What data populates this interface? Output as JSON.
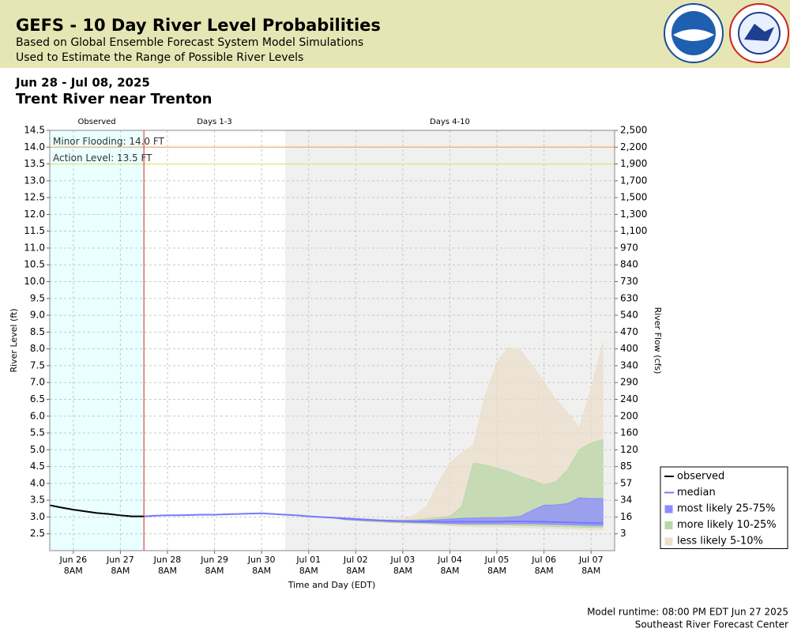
{
  "header": {
    "title": "GEFS - 10 Day River Level Probabilities",
    "subtitle1": "Based on Global Ensemble Forecast System Model Simulations",
    "subtitle2": "Used to Estimate the Range of Possible River Levels"
  },
  "footer": {
    "runtime": "Model runtime: 08:00 PM EDT Jun 27 2025",
    "center": "Southeast River Forecast Center"
  },
  "chart_data": {
    "type": "band",
    "date_range": "Jun 28 - Jul 08, 2025",
    "title": "Trent River near Trenton",
    "xlabel": "Time and Day (EDT)",
    "ylabel": "River Level (ft)",
    "y2label": "River Flow (cfs)",
    "grid": true,
    "legend": "right",
    "xlim": [
      "2025-06-25T20:00",
      "2025-07-07T20:00"
    ],
    "ylim": [
      2.0,
      14.5
    ],
    "xticks": [
      {
        "value": "2025-06-26T08:00",
        "label": "Jun 26",
        "time": "8AM"
      },
      {
        "value": "2025-06-27T08:00",
        "label": "Jun 27",
        "time": "8AM"
      },
      {
        "value": "2025-06-28T08:00",
        "label": "Jun 28",
        "time": "8AM"
      },
      {
        "value": "2025-06-29T08:00",
        "label": "Jun 29",
        "time": "8AM"
      },
      {
        "value": "2025-06-30T08:00",
        "label": "Jun 30",
        "time": "8AM"
      },
      {
        "value": "2025-07-01T08:00",
        "label": "Jul 01",
        "time": "8AM"
      },
      {
        "value": "2025-07-02T08:00",
        "label": "Jul 02",
        "time": "8AM"
      },
      {
        "value": "2025-07-03T08:00",
        "label": "Jul 03",
        "time": "8AM"
      },
      {
        "value": "2025-07-04T08:00",
        "label": "Jul 04",
        "time": "8AM"
      },
      {
        "value": "2025-07-05T08:00",
        "label": "Jul 05",
        "time": "8AM"
      },
      {
        "value": "2025-07-06T08:00",
        "label": "Jul 06",
        "time": "8AM"
      },
      {
        "value": "2025-07-07T08:00",
        "label": "Jul 07",
        "time": "8AM"
      }
    ],
    "yticks": [
      2.5,
      {
        "value": 3,
        "label": "3.0"
      },
      3.5,
      {
        "value": 4,
        "label": "4.0"
      },
      4.5,
      {
        "value": 5,
        "label": "5.0"
      },
      5.5,
      {
        "value": 6,
        "label": "6.0"
      },
      6.5,
      {
        "value": 7,
        "label": "7.0"
      },
      7.5,
      {
        "value": 8,
        "label": "8.0"
      },
      8.5,
      {
        "value": 9,
        "label": "9.0"
      },
      9.5,
      {
        "value": 10,
        "label": "10.0"
      },
      10.5,
      {
        "value": 11,
        "label": "11.0"
      },
      11.5,
      {
        "value": 12,
        "label": "12.0"
      },
      12.5,
      {
        "value": 13,
        "label": "13.0"
      },
      13.5,
      {
        "value": 14,
        "label": "14.0"
      },
      14.5
    ],
    "y2ticks": [
      3,
      16,
      34,
      57,
      85,
      120,
      160,
      200,
      240,
      290,
      340,
      400,
      470,
      540,
      630,
      730,
      840,
      970,
      {
        "value": 1100,
        "label": "1,100"
      },
      {
        "value": 1300,
        "label": "1,300"
      },
      {
        "value": 1500,
        "label": "1,500"
      },
      {
        "value": 1700,
        "label": "1,700"
      },
      {
        "value": 1900,
        "label": "1,900"
      },
      {
        "value": 2200,
        "label": "2,200"
      },
      {
        "value": 2500,
        "label": "2,500"
      }
    ],
    "regions": [
      {
        "label": "Observed",
        "start": "2025-06-25T20:00",
        "end": "2025-06-27T20:00",
        "color": "#eaffff"
      },
      {
        "label": "Days 1-3",
        "start": "2025-06-27T20:00",
        "end": "2025-06-30T20:00",
        "color": "#ffffff"
      },
      {
        "label": "Days 4-10",
        "start": "2025-06-30T20:00",
        "end": "2025-07-07T20:00",
        "color": "#f0f0f0"
      }
    ],
    "thresholds": [
      {
        "label": "Minor Flooding: 14.0 FT",
        "value": 14.0,
        "color": "#f0b070"
      },
      {
        "label": "Action Level: 13.5 FT",
        "value": 13.5,
        "color": "#e0e070"
      }
    ],
    "x": [
      "2025-06-27T20:00",
      "2025-06-28T02:00",
      "2025-06-28T08:00",
      "2025-06-28T14:00",
      "2025-06-28T20:00",
      "2025-06-29T02:00",
      "2025-06-29T08:00",
      "2025-06-29T14:00",
      "2025-06-29T20:00",
      "2025-06-30T02:00",
      "2025-06-30T08:00",
      "2025-06-30T14:00",
      "2025-06-30T20:00",
      "2025-07-01T02:00",
      "2025-07-01T08:00",
      "2025-07-01T14:00",
      "2025-07-01T20:00",
      "2025-07-02T02:00",
      "2025-07-02T08:00",
      "2025-07-02T14:00",
      "2025-07-02T20:00",
      "2025-07-03T02:00",
      "2025-07-03T08:00",
      "2025-07-03T14:00",
      "2025-07-03T20:00",
      "2025-07-04T02:00",
      "2025-07-04T08:00",
      "2025-07-04T14:00",
      "2025-07-04T20:00",
      "2025-07-05T02:00",
      "2025-07-05T08:00",
      "2025-07-05T14:00",
      "2025-07-05T20:00",
      "2025-07-06T02:00",
      "2025-07-06T08:00",
      "2025-07-06T14:00",
      "2025-07-06T20:00",
      "2025-07-07T02:00",
      "2025-07-07T08:00",
      "2025-07-07T14:00"
    ],
    "series": [
      {
        "name": "observed",
        "kind": "line",
        "color": "#000000",
        "x": [
          "2025-06-25T20:00",
          "2025-06-26T02:00",
          "2025-06-26T08:00",
          "2025-06-26T14:00",
          "2025-06-26T20:00",
          "2025-06-27T02:00",
          "2025-06-27T08:00",
          "2025-06-27T14:00",
          "2025-06-27T20:00"
        ],
        "values": [
          3.35,
          3.28,
          3.22,
          3.17,
          3.12,
          3.09,
          3.05,
          3.02,
          3.02
        ]
      },
      {
        "name": "median",
        "kind": "line",
        "color": "#7777ff",
        "values": [
          3.02,
          3.04,
          3.05,
          3.05,
          3.06,
          3.07,
          3.07,
          3.08,
          3.09,
          3.1,
          3.11,
          3.09,
          3.07,
          3.05,
          3.02,
          3.0,
          2.98,
          2.96,
          2.94,
          2.92,
          2.9,
          2.89,
          2.88,
          2.87,
          2.87,
          2.86,
          2.86,
          2.86,
          2.86,
          2.86,
          2.86,
          2.87,
          2.87,
          2.86,
          2.86,
          2.85,
          2.84,
          2.83,
          2.82,
          2.82
        ]
      },
      {
        "name": "most likely 25-75%",
        "kind": "band",
        "color": "#8c8cff",
        "lower": [
          3.02,
          3.04,
          3.05,
          3.05,
          3.06,
          3.07,
          3.07,
          3.08,
          3.09,
          3.1,
          3.11,
          3.09,
          3.07,
          3.05,
          3.02,
          3.0,
          2.98,
          2.93,
          2.91,
          2.89,
          2.88,
          2.86,
          2.85,
          2.84,
          2.83,
          2.82,
          2.81,
          2.8,
          2.8,
          2.8,
          2.8,
          2.8,
          2.8,
          2.8,
          2.79,
          2.78,
          2.77,
          2.76,
          2.75,
          2.75
        ],
        "upper": [
          3.02,
          3.04,
          3.05,
          3.05,
          3.06,
          3.07,
          3.07,
          3.08,
          3.09,
          3.1,
          3.11,
          3.09,
          3.07,
          3.05,
          3.02,
          3.0,
          2.98,
          2.97,
          2.95,
          2.93,
          2.91,
          2.9,
          2.89,
          2.89,
          2.9,
          2.92,
          2.94,
          2.96,
          2.97,
          2.98,
          2.98,
          2.99,
          3.02,
          3.2,
          3.35,
          3.36,
          3.4,
          3.57,
          3.55,
          3.55
        ]
      },
      {
        "name": "more likely 10-25%",
        "kind": "band",
        "color": "#b8d8a8",
        "lower": [
          3.02,
          3.04,
          3.05,
          3.05,
          3.06,
          3.07,
          3.07,
          3.08,
          3.09,
          3.1,
          3.11,
          3.09,
          3.07,
          3.05,
          3.02,
          3.0,
          2.98,
          2.92,
          2.9,
          2.88,
          2.86,
          2.84,
          2.83,
          2.82,
          2.81,
          2.8,
          2.78,
          2.77,
          2.76,
          2.76,
          2.76,
          2.76,
          2.75,
          2.74,
          2.73,
          2.72,
          2.71,
          2.7,
          2.69,
          2.69
        ],
        "upper": [
          3.02,
          3.04,
          3.05,
          3.05,
          3.06,
          3.07,
          3.07,
          3.08,
          3.09,
          3.1,
          3.11,
          3.09,
          3.07,
          3.05,
          3.02,
          3.0,
          2.98,
          2.97,
          2.95,
          2.93,
          2.91,
          2.9,
          2.9,
          2.92,
          2.95,
          2.98,
          3.02,
          3.3,
          4.6,
          4.55,
          4.45,
          4.35,
          4.2,
          4.1,
          3.95,
          4.05,
          4.4,
          5.0,
          5.2,
          5.3
        ]
      },
      {
        "name": "less likely 5-10%",
        "kind": "band",
        "color": "#ecdfcc",
        "lower": [
          3.02,
          3.04,
          3.05,
          3.05,
          3.06,
          3.07,
          3.07,
          3.08,
          3.09,
          3.1,
          3.11,
          3.09,
          3.07,
          3.05,
          3.02,
          3.0,
          2.98,
          2.91,
          2.89,
          2.87,
          2.85,
          2.83,
          2.81,
          2.8,
          2.79,
          2.77,
          2.74,
          2.72,
          2.71,
          2.7,
          2.7,
          2.7,
          2.69,
          2.68,
          2.67,
          2.66,
          2.65,
          2.64,
          2.63,
          2.62
        ],
        "upper": [
          3.02,
          3.04,
          3.05,
          3.05,
          3.06,
          3.07,
          3.07,
          3.08,
          3.09,
          3.1,
          3.11,
          3.09,
          3.07,
          3.05,
          3.02,
          3.0,
          2.98,
          2.97,
          2.96,
          2.94,
          2.93,
          2.93,
          2.95,
          3.05,
          3.3,
          4.0,
          4.6,
          4.9,
          5.15,
          6.6,
          7.6,
          8.05,
          7.95,
          7.5,
          7.0,
          6.5,
          6.1,
          5.65,
          6.8,
          8.2
        ]
      }
    ]
  }
}
